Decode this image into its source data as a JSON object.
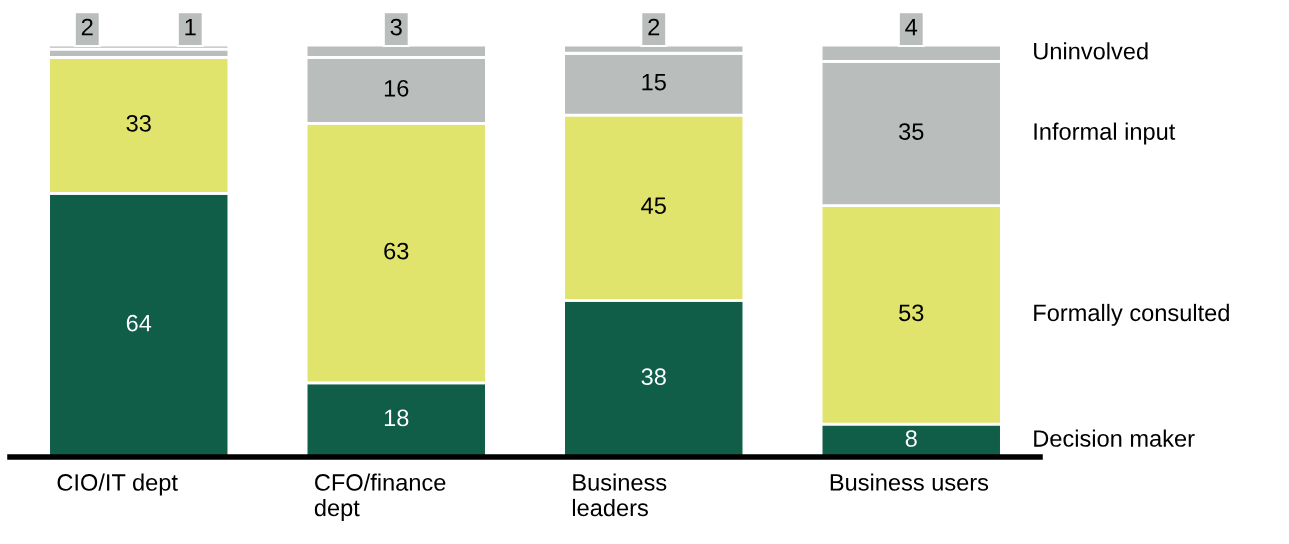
{
  "chart_data": {
    "type": "bar",
    "stacked": true,
    "data_labels": true,
    "legend": "right",
    "categories": [
      "CIO/IT dept",
      "CFO/finance dept",
      "Business leaders",
      "Business users"
    ],
    "series": [
      {
        "name": "Decision maker",
        "color": "#105e48",
        "values": [
          64,
          18,
          38,
          8
        ]
      },
      {
        "name": "Formally consulted",
        "color": "#e1e46c",
        "values": [
          33,
          63,
          45,
          53
        ]
      },
      {
        "name": "Informal input",
        "color": "#b9bdbc",
        "values": [
          2,
          16,
          15,
          35
        ]
      },
      {
        "name": "Uninvolved",
        "color": "#b9bdbc",
        "values": [
          1,
          3,
          2,
          4
        ]
      }
    ],
    "ylim": [
      0,
      100
    ]
  }
}
